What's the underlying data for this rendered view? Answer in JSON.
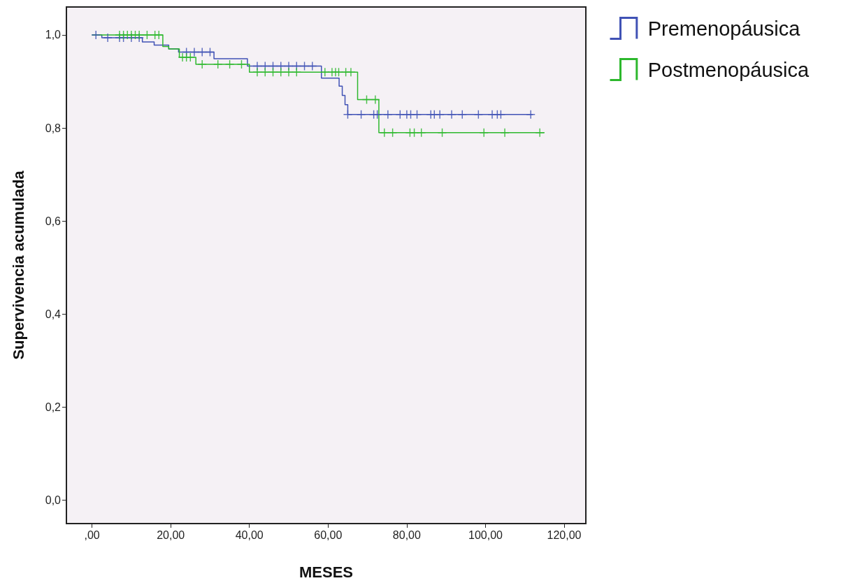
{
  "chart_data": {
    "type": "step",
    "xlabel": "MESES",
    "ylabel": "Supervivencia acumulada",
    "xlim": [
      -6.5,
      125.5
    ],
    "ylim": [
      -0.05,
      1.06
    ],
    "xticks": [
      {
        "value": 0,
        "label": ",00"
      },
      {
        "value": 20,
        "label": "20,00"
      },
      {
        "value": 40,
        "label": "40,00"
      },
      {
        "value": 60,
        "label": "60,00"
      },
      {
        "value": 80,
        "label": "80,00"
      },
      {
        "value": 100,
        "label": "100,00"
      },
      {
        "value": 120,
        "label": "120,00"
      }
    ],
    "yticks": [
      {
        "value": 0,
        "label": "0,0"
      },
      {
        "value": 0.2,
        "label": "0,2"
      },
      {
        "value": 0.4,
        "label": "0,4"
      },
      {
        "value": 0.6,
        "label": "0,6"
      },
      {
        "value": 0.8,
        "label": "0,8"
      },
      {
        "value": 1.0,
        "label": "1,0"
      }
    ],
    "grid": false,
    "legend": "top right",
    "line_style": "solid",
    "series": [
      {
        "name": "Premenopáusica",
        "marker": "none",
        "color": "#4052b5",
        "x": [
          0,
          2.5,
          12.8,
          15.8,
          19.5,
          22,
          31,
          39.5,
          58.3,
          62.8,
          63.6,
          64.3,
          65,
          112
        ],
        "values": [
          1.0,
          0.994,
          0.985,
          0.978,
          0.97,
          0.963,
          0.949,
          0.933,
          0.907,
          0.89,
          0.87,
          0.85,
          0.829,
          0.829
        ]
      },
      {
        "name": "Postmenopáusica",
        "marker": "none",
        "color": "#2db82d",
        "x": [
          0,
          18,
          19.5,
          22.2,
          26.4,
          40,
          67.5,
          72.9,
          115
        ],
        "values": [
          1.0,
          0.975,
          0.97,
          0.952,
          0.937,
          0.92,
          0.861,
          0.79,
          0.79
        ]
      },
      {
        "type": "scatter",
        "marker": "cross",
        "color": "#4052b5",
        "x": [
          1,
          4,
          7,
          8,
          10,
          12,
          24,
          26,
          28,
          30,
          42,
          44,
          46,
          48,
          50,
          52,
          54,
          56,
          65,
          68.4,
          71.6,
          72.5,
          75.2,
          78.3,
          80,
          81,
          82.6,
          86.1,
          87,
          88.4,
          91.4,
          94.1,
          98.2,
          101.7,
          103,
          103.9,
          111.5
        ],
        "values": [
          1.0,
          0.994,
          0.994,
          0.994,
          0.994,
          0.994,
          0.963,
          0.963,
          0.963,
          0.963,
          0.933,
          0.933,
          0.933,
          0.933,
          0.933,
          0.933,
          0.933,
          0.933,
          0.829,
          0.829,
          0.829,
          0.829,
          0.829,
          0.829,
          0.829,
          0.829,
          0.829,
          0.829,
          0.829,
          0.829,
          0.829,
          0.829,
          0.829,
          0.829,
          0.829,
          0.829,
          0.829
        ]
      },
      {
        "type": "scatter",
        "marker": "cross",
        "color": "#2db82d",
        "x": [
          7,
          8,
          9,
          10,
          11,
          12,
          14,
          16,
          17,
          23,
          24,
          25,
          28,
          32,
          35,
          38,
          42,
          44,
          46,
          48,
          50,
          52,
          59.2,
          61,
          61.9,
          62.7,
          64.5,
          65.8,
          69.8,
          72,
          74.3,
          76.4,
          80.8,
          81.9,
          83.7,
          89,
          99.6,
          104.9,
          113.8
        ],
        "values": [
          1.0,
          1.0,
          1.0,
          1.0,
          1.0,
          1.0,
          1.0,
          1.0,
          1.0,
          0.952,
          0.952,
          0.952,
          0.937,
          0.937,
          0.937,
          0.937,
          0.92,
          0.92,
          0.92,
          0.92,
          0.92,
          0.92,
          0.92,
          0.92,
          0.92,
          0.92,
          0.92,
          0.92,
          0.861,
          0.861,
          0.79,
          0.79,
          0.79,
          0.79,
          0.79,
          0.79,
          0.79,
          0.79,
          0.79
        ]
      }
    ]
  }
}
